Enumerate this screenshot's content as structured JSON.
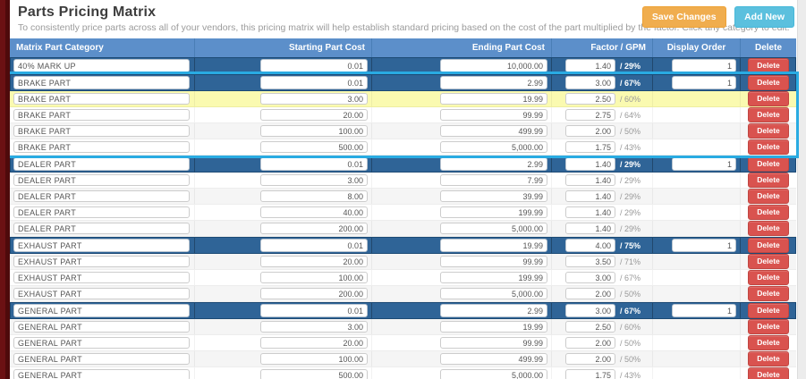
{
  "page": {
    "title": "Parts Pricing Matrix",
    "subtitle": "To consistently price parts across all of your vendors, this pricing matrix will help establish standard pricing based on the cost of the part multiplied by the factor. Click any category to edit.",
    "buttons": {
      "save": "Save Changes",
      "add": "Add New"
    }
  },
  "colors": {
    "header_blue": "#5c8fca",
    "group_row_blue": "#2f6497",
    "highlight_yellow": "#fafab0",
    "selection_cyan": "#29abe2",
    "delete_red": "#d9534f",
    "save_orange": "#f0ad4e",
    "add_teal": "#5bc0de"
  },
  "table": {
    "headers": [
      "Matrix Part Category",
      "Starting Part Cost",
      "Ending Part Cost",
      "Factor / GPM",
      "Display Order",
      "Delete"
    ],
    "delete_label": "Delete",
    "rows": [
      {
        "category": "40% MARK UP",
        "start": "0.01",
        "end": "10,000.00",
        "factor": "1.40",
        "gpm": "/ 29%",
        "order": "1",
        "style": "group"
      },
      {
        "category": "BRAKE PART",
        "start": "0.01",
        "end": "2.99",
        "factor": "3.00",
        "gpm": "/ 67%",
        "order": "1",
        "style": "group",
        "selected": true
      },
      {
        "category": "BRAKE PART",
        "start": "3.00",
        "end": "19.99",
        "factor": "2.50",
        "gpm": "/ 60%",
        "style": "highlight",
        "selected": true
      },
      {
        "category": "BRAKE PART",
        "start": "20.00",
        "end": "99.99",
        "factor": "2.75",
        "gpm": "/ 64%",
        "selected": true
      },
      {
        "category": "BRAKE PART",
        "start": "100.00",
        "end": "499.99",
        "factor": "2.00",
        "gpm": "/ 50%",
        "selected": true
      },
      {
        "category": "BRAKE PART",
        "start": "500.00",
        "end": "5,000.00",
        "factor": "1.75",
        "gpm": "/ 43%",
        "selected": true
      },
      {
        "category": "DEALER PART",
        "start": "0.01",
        "end": "2.99",
        "factor": "1.40",
        "gpm": "/ 29%",
        "order": "1",
        "style": "group"
      },
      {
        "category": "DEALER PART",
        "start": "3.00",
        "end": "7.99",
        "factor": "1.40",
        "gpm": "/ 29%"
      },
      {
        "category": "DEALER PART",
        "start": "8.00",
        "end": "39.99",
        "factor": "1.40",
        "gpm": "/ 29%"
      },
      {
        "category": "DEALER PART",
        "start": "40.00",
        "end": "199.99",
        "factor": "1.40",
        "gpm": "/ 29%"
      },
      {
        "category": "DEALER PART",
        "start": "200.00",
        "end": "5,000.00",
        "factor": "1.40",
        "gpm": "/ 29%"
      },
      {
        "category": "EXHAUST PART",
        "start": "0.01",
        "end": "19.99",
        "factor": "4.00",
        "gpm": "/ 75%",
        "order": "1",
        "style": "group"
      },
      {
        "category": "EXHAUST PART",
        "start": "20.00",
        "end": "99.99",
        "factor": "3.50",
        "gpm": "/ 71%"
      },
      {
        "category": "EXHAUST PART",
        "start": "100.00",
        "end": "199.99",
        "factor": "3.00",
        "gpm": "/ 67%"
      },
      {
        "category": "EXHAUST PART",
        "start": "200.00",
        "end": "5,000.00",
        "factor": "2.00",
        "gpm": "/ 50%"
      },
      {
        "category": "GENERAL PART",
        "start": "0.01",
        "end": "2.99",
        "factor": "3.00",
        "gpm": "/ 67%",
        "order": "1",
        "style": "group"
      },
      {
        "category": "GENERAL PART",
        "start": "3.00",
        "end": "19.99",
        "factor": "2.50",
        "gpm": "/ 60%"
      },
      {
        "category": "GENERAL PART",
        "start": "20.00",
        "end": "99.99",
        "factor": "2.00",
        "gpm": "/ 50%"
      },
      {
        "category": "GENERAL PART",
        "start": "100.00",
        "end": "499.99",
        "factor": "2.00",
        "gpm": "/ 50%"
      },
      {
        "category": "GENERAL PART",
        "start": "500.00",
        "end": "5,000.00",
        "factor": "1.75",
        "gpm": "/ 43%"
      }
    ]
  }
}
